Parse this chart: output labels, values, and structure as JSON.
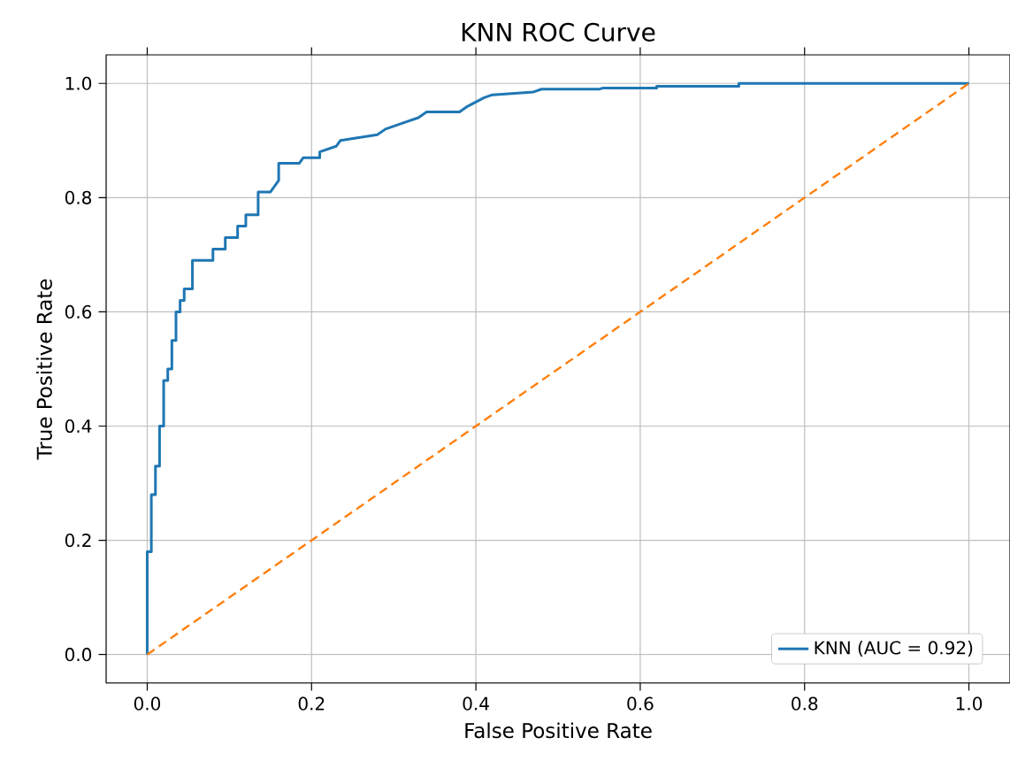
{
  "chart_data": {
    "type": "line",
    "title": "KNN ROC Curve",
    "xlabel": "False Positive Rate",
    "ylabel": "True Positive Rate",
    "xlim": [
      -0.05,
      1.05
    ],
    "ylim": [
      -0.05,
      1.05
    ],
    "xticks": [
      {
        "value": 0,
        "label": "0.0"
      },
      0.2,
      0.4,
      0.6,
      0.8,
      {
        "value": 1,
        "label": "1.0"
      }
    ],
    "yticks": [
      {
        "value": 0,
        "label": "0.0"
      },
      0.2,
      0.4,
      0.6,
      0.8,
      {
        "value": 1,
        "label": "1.0"
      }
    ],
    "grid": true,
    "legend": "bottom right",
    "series": [
      {
        "name": "KNN (AUC = 0.92)",
        "color": "#1f77b4",
        "line_style": "solid",
        "x": [
          0,
          0,
          0.005,
          0.005,
          0.01,
          0.01,
          0.015,
          0.015,
          0.02,
          0.02,
          0.025,
          0.025,
          0.03,
          0.03,
          0.035,
          0.035,
          0.04,
          0.04,
          0.045,
          0.045,
          0.055,
          0.055,
          0.08,
          0.08,
          0.095,
          0.095,
          0.11,
          0.11,
          0.12,
          0.12,
          0.135,
          0.135,
          0.15,
          0.16,
          0.16,
          0.185,
          0.19,
          0.21,
          0.21,
          0.23,
          0.235,
          0.28,
          0.29,
          0.31,
          0.33,
          0.34,
          0.38,
          0.39,
          0.41,
          0.42,
          0.47,
          0.48,
          0.55,
          0.555,
          0.62,
          0.62,
          0.72,
          0.72,
          1
        ],
        "values": [
          0,
          0.18,
          0.18,
          0.28,
          0.28,
          0.33,
          0.33,
          0.4,
          0.4,
          0.48,
          0.48,
          0.5,
          0.5,
          0.55,
          0.55,
          0.6,
          0.6,
          0.62,
          0.62,
          0.64,
          0.64,
          0.69,
          0.69,
          0.71,
          0.71,
          0.73,
          0.73,
          0.75,
          0.75,
          0.77,
          0.77,
          0.81,
          0.81,
          0.83,
          0.86,
          0.86,
          0.87,
          0.87,
          0.88,
          0.89,
          0.9,
          0.91,
          0.92,
          0.93,
          0.94,
          0.95,
          0.95,
          0.96,
          0.975,
          0.98,
          0.985,
          0.99,
          0.99,
          0.992,
          0.992,
          0.995,
          0.995,
          1,
          1
        ]
      },
      {
        "color": "#ff7f0e",
        "line_style": "dashed",
        "x": [
          0,
          1
        ],
        "values": [
          0,
          1
        ]
      }
    ]
  }
}
